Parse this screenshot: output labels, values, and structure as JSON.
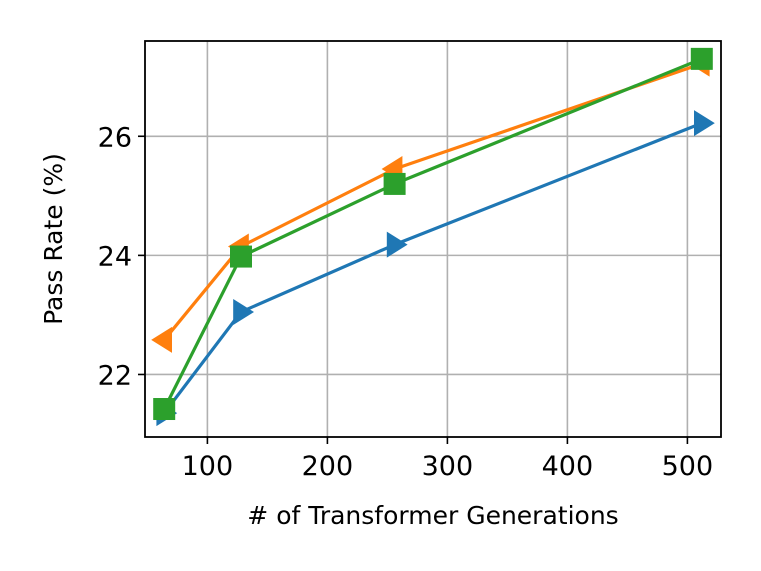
{
  "chart_data": {
    "type": "line",
    "title": "",
    "xlabel": "# of Transformer Generations",
    "ylabel": "Pass Rate (%)",
    "xlim": [
      48,
      528
    ],
    "ylim": [
      20.95,
      27.6
    ],
    "xticks": [
      100,
      200,
      300,
      400,
      500
    ],
    "yticks": [
      22,
      24,
      26
    ],
    "grid": true,
    "legend": "none",
    "x": [
      64,
      128,
      256,
      512
    ],
    "series": [
      {
        "values": [
          21.35,
          23.05,
          24.18,
          26.22
        ],
        "color": "#1f77b4",
        "marker": "triangle-right"
      },
      {
        "values": [
          22.58,
          24.15,
          25.45,
          27.22
        ],
        "color": "#ff7f0e",
        "marker": "triangle-left"
      },
      {
        "values": [
          21.42,
          23.98,
          25.2,
          27.3
        ],
        "color": "#2ca02c",
        "marker": "square"
      }
    ]
  }
}
